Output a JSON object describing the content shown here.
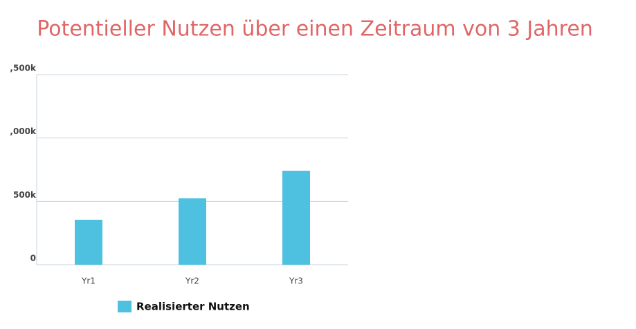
{
  "chart_data": {
    "type": "bar",
    "title": "Potentieller Nutzen über einen Zeitraum von 3 Jahren",
    "categories": [
      "Yr1",
      "Yr2",
      "Yr3"
    ],
    "series": [
      {
        "name": "Realisierter Nutzen",
        "color": "#4ec1e0",
        "values": [
          355000,
          524000,
          742000
        ]
      }
    ],
    "ylim": [
      0,
      1500000
    ],
    "yticks": [
      0,
      {
        "value": 500000,
        "label": "500k"
      },
      {
        "value": 1000000,
        "label": ",000k"
      },
      {
        "value": 1500000,
        "label": ",500k"
      }
    ],
    "grid": true
  }
}
